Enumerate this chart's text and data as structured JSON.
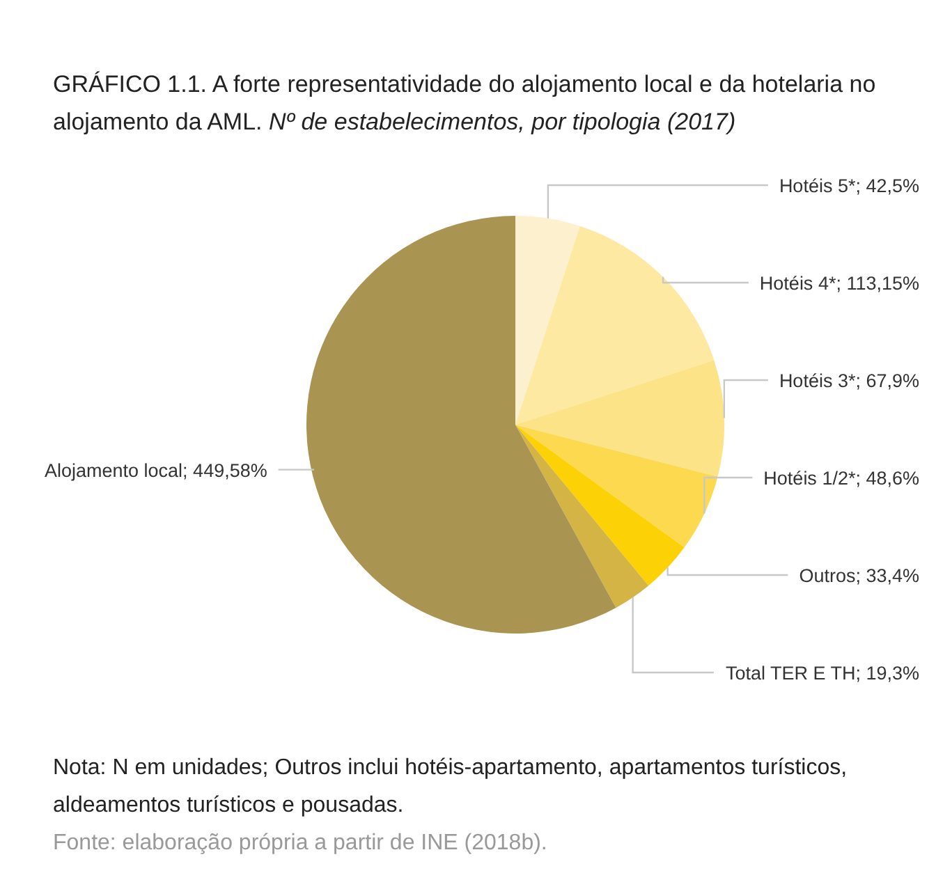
{
  "chart_data": {
    "type": "pie",
    "title": "GRÁFICO 1.1. A forte representatividade do alojamento local e da hotelaria no alojamento da AML.",
    "subtitle": "Nº de estabelecimentos, por tipologia (2017)",
    "categories": [
      "Hotéis 5*; 42",
      "Hotéis 4*; 113",
      "Hotéis 3*; 67",
      "Hotéis 1/2*; 48",
      "Outros; 33",
      "Total TER E TH; 19",
      "Alojamento local; 449"
    ],
    "values": [
      5,
      15,
      9,
      6,
      4,
      3,
      58
    ],
    "value_labels": [
      "5%",
      "15%",
      "9%",
      "6%",
      "4%",
      "3%",
      "58%"
    ],
    "colors": [
      "#fdf0cf",
      "#fde9a2",
      "#fde387",
      "#fdd94f",
      "#fcd106",
      "#d4b444",
      "#a99452"
    ],
    "annotations": [
      "Nota: N em unidades; Outros inclui hotéis-apartamento, apartamentos turísticos, aldeamentos turísticos e pousadas.",
      "Fonte: elaboração própria a partir de INE (2018b)."
    ]
  }
}
